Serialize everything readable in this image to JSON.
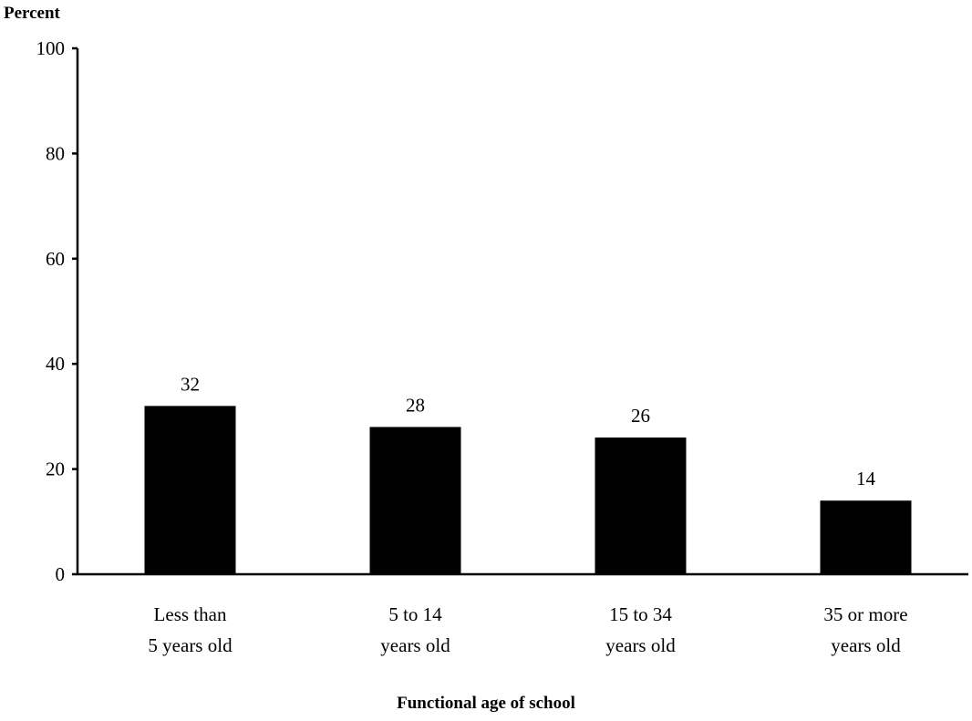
{
  "chart_data": {
    "type": "bar",
    "ylabel": "Percent",
    "xlabel": "Functional age of school",
    "ylim": [
      0,
      100
    ],
    "yticks": [
      0,
      20,
      40,
      60,
      80,
      100
    ],
    "categories": [
      [
        "Less than",
        "5 years old"
      ],
      [
        "5 to 14",
        "years old"
      ],
      [
        "15 to 34",
        "years old"
      ],
      [
        "35 or more",
        "years old"
      ]
    ],
    "values": [
      32,
      28,
      26,
      14
    ],
    "data_labels": [
      "32",
      "28",
      "26",
      "14"
    ],
    "bar_color": "#000000",
    "grid": false,
    "legend": "none"
  }
}
